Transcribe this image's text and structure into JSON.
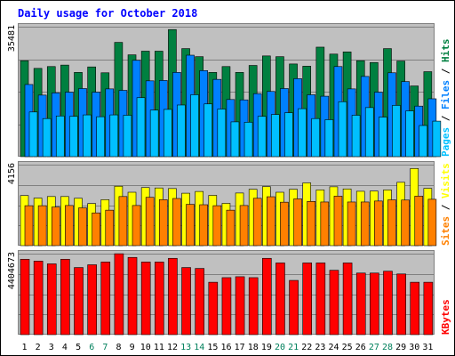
{
  "chart_data": [
    {
      "type": "bar",
      "title": "Daily usage for October 2018",
      "categories": [
        "1",
        "2",
        "3",
        "4",
        "5",
        "6",
        "7",
        "8",
        "9",
        "10",
        "11",
        "12",
        "13",
        "14",
        "15",
        "16",
        "17",
        "18",
        "19",
        "20",
        "21",
        "22",
        "23",
        "24",
        "25",
        "26",
        "27",
        "28",
        "29",
        "30",
        "31"
      ],
      "weekend_days": [
        6,
        7,
        13,
        14,
        20,
        21,
        27,
        28
      ],
      "y_tick_label": "35481",
      "ylim": [
        0,
        35481
      ],
      "ylabel_parts": [
        "Hits",
        "Files",
        "Pages"
      ],
      "grid": true,
      "series": [
        {
          "name": "Hits",
          "color": "#008040",
          "values": [
            26200,
            24100,
            24600,
            25000,
            23000,
            24500,
            22900,
            31200,
            27800,
            28800,
            28800,
            34700,
            29500,
            27300,
            23000,
            24600,
            23000,
            24900,
            27500,
            27300,
            25300,
            24700,
            29900,
            28000,
            28600,
            26200,
            25700,
            29500,
            26100,
            19300,
            23200
          ]
        },
        {
          "name": "Files",
          "color": "#0080FF",
          "values": [
            19700,
            16800,
            17400,
            17600,
            18600,
            17600,
            18500,
            18100,
            26300,
            20700,
            20800,
            23000,
            27700,
            23500,
            21100,
            15600,
            15500,
            17200,
            17800,
            18600,
            21300,
            16900,
            16500,
            24600,
            18500,
            21900,
            17600,
            22900,
            20500,
            13800,
            15800
          ]
        },
        {
          "name": "Pages",
          "color": "#00C0FF",
          "values": [
            12200,
            10400,
            11100,
            11000,
            11400,
            10900,
            11400,
            11300,
            16100,
            12700,
            12900,
            14100,
            16900,
            14400,
            13000,
            9500,
            9400,
            11000,
            11500,
            12000,
            13100,
            10400,
            10100,
            15000,
            11300,
            13400,
            10800,
            14000,
            12500,
            8500,
            9700
          ]
        }
      ]
    },
    {
      "type": "bar",
      "categories": [
        "1",
        "2",
        "3",
        "4",
        "5",
        "6",
        "7",
        "8",
        "9",
        "10",
        "11",
        "12",
        "13",
        "14",
        "15",
        "16",
        "17",
        "18",
        "19",
        "20",
        "21",
        "22",
        "23",
        "24",
        "25",
        "26",
        "27",
        "28",
        "29",
        "30",
        "31"
      ],
      "y_tick_label": "4156",
      "ylim": [
        0,
        4156
      ],
      "ylabel_parts": [
        "Visits",
        "Sites"
      ],
      "grid": true,
      "series": [
        {
          "name": "Visits",
          "color": "#FFFF00",
          "values": [
            2570,
            2440,
            2520,
            2520,
            2430,
            2160,
            2360,
            3050,
            2740,
            2980,
            2960,
            2930,
            2690,
            2780,
            2580,
            2170,
            2700,
            2890,
            3030,
            2740,
            2890,
            3220,
            2860,
            3020,
            2910,
            2790,
            2800,
            2860,
            3250,
            3960,
            2940
          ]
        },
        {
          "name": "Sites",
          "color": "#FF8000",
          "values": [
            2050,
            2050,
            1980,
            2060,
            1940,
            1680,
            1820,
            2520,
            2060,
            2480,
            2360,
            2420,
            2120,
            2100,
            2050,
            1820,
            2060,
            2430,
            2510,
            2230,
            2400,
            2270,
            2240,
            2540,
            2240,
            2240,
            2290,
            2350,
            2340,
            2540,
            2380
          ]
        }
      ]
    },
    {
      "type": "bar",
      "categories": [
        "1",
        "2",
        "3",
        "4",
        "5",
        "6",
        "7",
        "8",
        "9",
        "10",
        "11",
        "12",
        "13",
        "14",
        "15",
        "16",
        "17",
        "18",
        "19",
        "20",
        "21",
        "22",
        "23",
        "24",
        "25",
        "26",
        "27",
        "28",
        "29",
        "30",
        "31"
      ],
      "y_tick_label": "4404673",
      "ylim": [
        0,
        4404673
      ],
      "ylabel_parts": [
        "KBytes"
      ],
      "grid": true,
      "series": [
        {
          "name": "KBytes",
          "color": "#FF0000",
          "values": [
            4100000,
            4000000,
            3850000,
            4100000,
            3650000,
            3800000,
            3950000,
            4400000,
            4200000,
            3950000,
            3950000,
            4150000,
            3650000,
            3600000,
            2850000,
            3100000,
            3150000,
            3100000,
            4150000,
            3900000,
            2950000,
            3900000,
            3900000,
            3500000,
            3900000,
            3350000,
            3350000,
            3450000,
            3300000,
            2850000,
            2850000
          ]
        }
      ]
    }
  ],
  "colors": {
    "background": "#ffffff",
    "plot_bg": "#C0C0C0",
    "frame": "#000000",
    "gridline": "#808080",
    "title": "#0000FF",
    "weekday_label": "#000000",
    "weekend_label": "#00805C"
  }
}
